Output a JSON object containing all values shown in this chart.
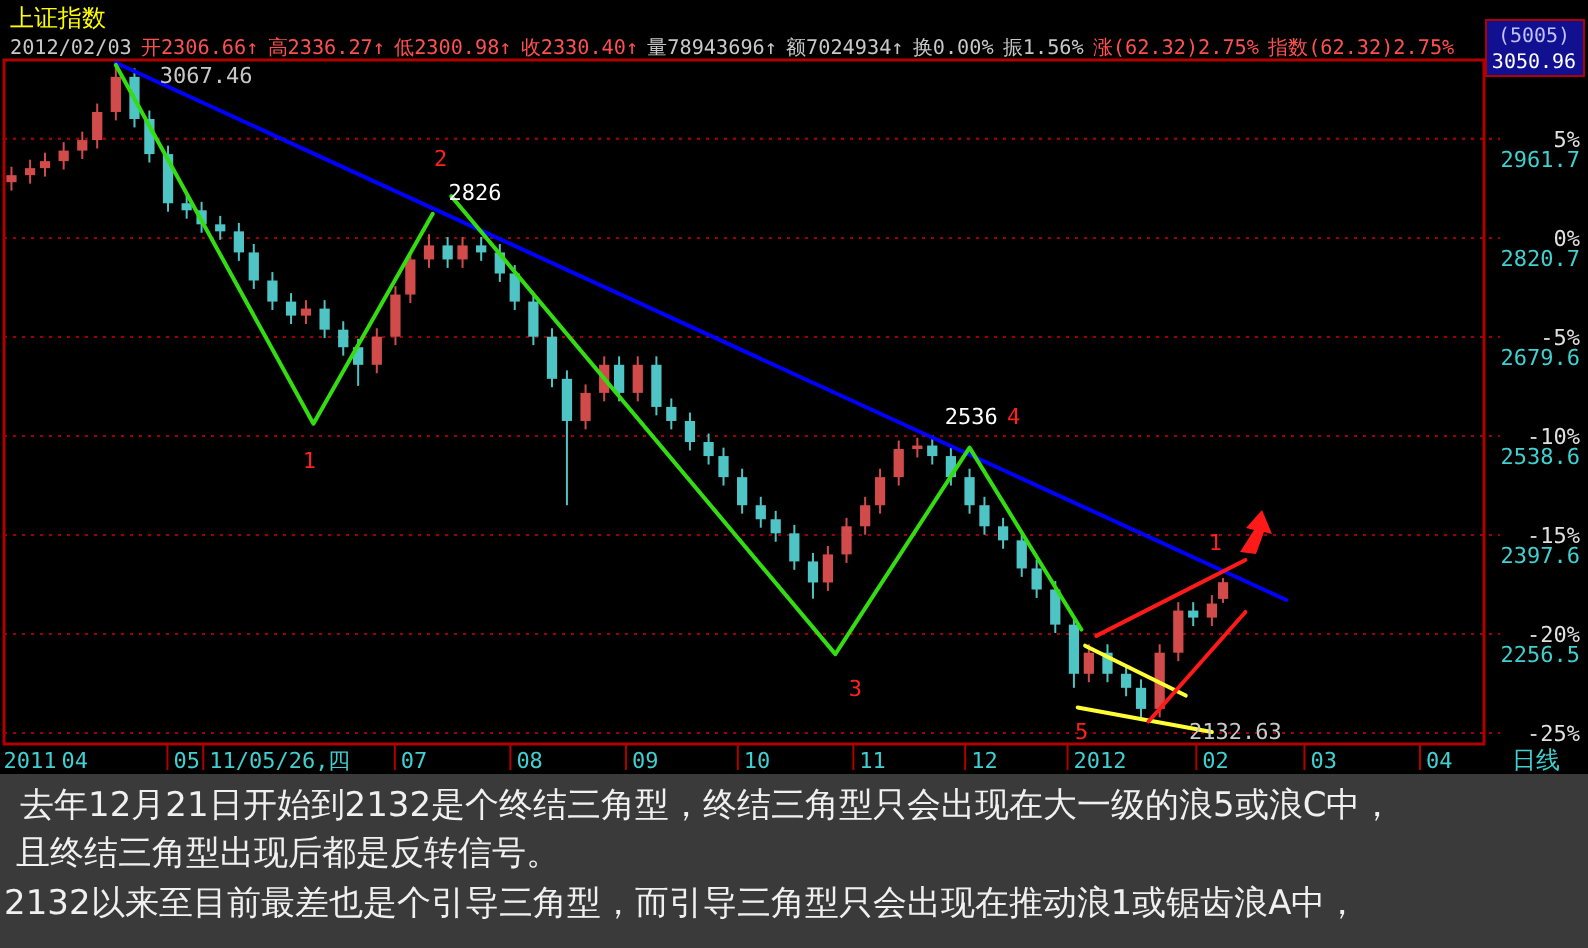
{
  "chart_data": {
    "type": "candlestick",
    "title": "上证指数",
    "xlabel": "日线",
    "x": [
      "2011-03-15",
      "2011-03-20",
      "2011-03-24",
      "2011-03-29",
      "2011-04-03",
      "2011-04-07",
      "2011-04-12",
      "2011-04-17",
      "2011-04-21",
      "2011-04-26",
      "2011-05-01",
      "2011-05-05",
      "2011-05-10",
      "2011-05-15",
      "2011-05-19",
      "2011-05-24",
      "2011-05-29",
      "2011-06-02",
      "2011-06-07",
      "2011-06-12",
      "2011-06-16",
      "2011-06-21",
      "2011-06-26",
      "2011-06-30",
      "2011-07-05",
      "2011-07-10",
      "2011-07-14",
      "2011-07-19",
      "2011-07-24",
      "2011-07-28",
      "2011-08-02",
      "2011-08-07",
      "2011-08-11",
      "2011-08-16",
      "2011-08-21",
      "2011-08-25",
      "2011-08-30",
      "2011-09-04",
      "2011-09-08",
      "2011-09-13",
      "2011-09-18",
      "2011-09-22",
      "2011-09-27",
      "2011-10-02",
      "2011-10-06",
      "2011-10-11",
      "2011-10-16",
      "2011-10-20",
      "2011-10-25",
      "2011-10-30",
      "2011-11-03",
      "2011-11-08",
      "2011-11-13",
      "2011-11-17",
      "2011-11-22",
      "2011-11-27",
      "2011-12-01",
      "2011-12-06",
      "2011-12-11",
      "2011-12-15",
      "2011-12-20",
      "2011-12-25",
      "2011-12-29",
      "2012-01-03",
      "2012-01-08",
      "2012-01-12",
      "2012-01-17",
      "2012-01-22",
      "2012-01-26",
      "2012-01-31",
      "2012-02-03"
    ],
    "ohlc": [
      [
        2900,
        2922,
        2888,
        2910
      ],
      [
        2910,
        2932,
        2898,
        2920
      ],
      [
        2920,
        2942,
        2908,
        2930
      ],
      [
        2930,
        2957,
        2918,
        2945
      ],
      [
        2945,
        2972,
        2933,
        2960
      ],
      [
        2960,
        3012,
        2948,
        3000
      ],
      [
        3000,
        3067.46,
        2988,
        3050
      ],
      [
        3050,
        3062,
        2978,
        2990
      ],
      [
        2990,
        3002,
        2928,
        2940
      ],
      [
        2940,
        2952,
        2858,
        2870
      ],
      [
        2870,
        2882,
        2848,
        2860
      ],
      [
        2860,
        2872,
        2828,
        2840
      ],
      [
        2840,
        2852,
        2818,
        2830
      ],
      [
        2830,
        2842,
        2788,
        2800
      ],
      [
        2800,
        2812,
        2748,
        2760
      ],
      [
        2760,
        2772,
        2718,
        2730
      ],
      [
        2730,
        2742,
        2698,
        2710
      ],
      [
        2710,
        2732,
        2698,
        2720
      ],
      [
        2720,
        2732,
        2678,
        2690
      ],
      [
        2690,
        2702,
        2653,
        2665
      ],
      [
        2665,
        2677,
        2610,
        2640
      ],
      [
        2640,
        2692,
        2628,
        2680
      ],
      [
        2680,
        2752,
        2668,
        2740
      ],
      [
        2740,
        2802,
        2728,
        2790
      ],
      [
        2790,
        2826,
        2778,
        2810
      ],
      [
        2810,
        2822,
        2778,
        2790
      ],
      [
        2790,
        2822,
        2778,
        2810
      ],
      [
        2810,
        2822,
        2788,
        2800
      ],
      [
        2800,
        2812,
        2758,
        2770
      ],
      [
        2770,
        2782,
        2718,
        2730
      ],
      [
        2730,
        2742,
        2668,
        2680
      ],
      [
        2680,
        2692,
        2608,
        2620
      ],
      [
        2620,
        2632,
        2440,
        2560
      ],
      [
        2560,
        2612,
        2548,
        2600
      ],
      [
        2600,
        2652,
        2588,
        2640
      ],
      [
        2640,
        2652,
        2588,
        2600
      ],
      [
        2600,
        2652,
        2588,
        2640
      ],
      [
        2640,
        2652,
        2568,
        2580
      ],
      [
        2580,
        2592,
        2548,
        2560
      ],
      [
        2560,
        2572,
        2518,
        2530
      ],
      [
        2530,
        2542,
        2498,
        2510
      ],
      [
        2510,
        2522,
        2468,
        2480
      ],
      [
        2480,
        2492,
        2428,
        2440
      ],
      [
        2440,
        2452,
        2408,
        2420
      ],
      [
        2420,
        2432,
        2388,
        2400
      ],
      [
        2400,
        2412,
        2348,
        2360
      ],
      [
        2360,
        2372,
        2307,
        2330
      ],
      [
        2330,
        2382,
        2318,
        2370
      ],
      [
        2370,
        2422,
        2358,
        2410
      ],
      [
        2410,
        2452,
        2398,
        2440
      ],
      [
        2440,
        2492,
        2428,
        2480
      ],
      [
        2480,
        2532,
        2468,
        2520
      ],
      [
        2520,
        2536,
        2508,
        2525
      ],
      [
        2525,
        2537,
        2498,
        2510
      ],
      [
        2510,
        2522,
        2468,
        2480
      ],
      [
        2480,
        2492,
        2428,
        2440
      ],
      [
        2440,
        2452,
        2398,
        2410
      ],
      [
        2410,
        2422,
        2378,
        2390
      ],
      [
        2390,
        2402,
        2338,
        2350
      ],
      [
        2350,
        2362,
        2308,
        2320
      ],
      [
        2320,
        2332,
        2258,
        2270
      ],
      [
        2270,
        2282,
        2180,
        2200
      ],
      [
        2200,
        2242,
        2188,
        2230
      ],
      [
        2230,
        2242,
        2188,
        2200
      ],
      [
        2200,
        2212,
        2168,
        2180
      ],
      [
        2180,
        2192,
        2132.63,
        2150
      ],
      [
        2150,
        2242,
        2138,
        2230
      ],
      [
        2230,
        2302,
        2218,
        2290
      ],
      [
        2290,
        2302,
        2268,
        2280
      ],
      [
        2280,
        2312,
        2268,
        2300
      ],
      [
        2306.66,
        2336.27,
        2300.98,
        2330.4
      ]
    ],
    "colors": [
      "#d24b4b",
      "#d24b4b",
      "#d24b4b",
      "#d24b4b",
      "#d24b4b",
      "#d24b4b",
      "#d24b4b",
      "#4fc4c4",
      "#4fc4c4",
      "#4fc4c4",
      "#4fc4c4",
      "#4fc4c4",
      "#4fc4c4",
      "#4fc4c4",
      "#4fc4c4",
      "#4fc4c4",
      "#4fc4c4",
      "#d24b4b",
      "#4fc4c4",
      "#4fc4c4",
      "#4fc4c4",
      "#d24b4b",
      "#d24b4b",
      "#d24b4b",
      "#d24b4b",
      "#4fc4c4",
      "#d24b4b",
      "#4fc4c4",
      "#4fc4c4",
      "#4fc4c4",
      "#4fc4c4",
      "#4fc4c4",
      "#4fc4c4",
      "#d24b4b",
      "#d24b4b",
      "#4fc4c4",
      "#d24b4b",
      "#4fc4c4",
      "#4fc4c4",
      "#4fc4c4",
      "#4fc4c4",
      "#4fc4c4",
      "#4fc4c4",
      "#4fc4c4",
      "#4fc4c4",
      "#4fc4c4",
      "#4fc4c4",
      "#d24b4b",
      "#d24b4b",
      "#d24b4b",
      "#d24b4b",
      "#d24b4b",
      "#d24b4b",
      "#4fc4c4",
      "#4fc4c4",
      "#4fc4c4",
      "#4fc4c4",
      "#4fc4c4",
      "#4fc4c4",
      "#4fc4c4",
      "#4fc4c4",
      "#4fc4c4",
      "#d24b4b",
      "#4fc4c4",
      "#4fc4c4",
      "#4fc4c4",
      "#d24b4b",
      "#d24b4b",
      "#4fc4c4",
      "#d24b4b",
      "#d24b4b"
    ],
    "series": [
      {
        "type": "line",
        "color": "#0000ff",
        "x": [
          "2011-04-12",
          "2012-02-20"
        ],
        "values": [
          3070,
          2305
        ]
      },
      {
        "type": "line",
        "color": "#33dd11",
        "x": [
          "2011-04-12",
          "2011-06-04",
          "2011-07-06"
        ],
        "values": [
          3067,
          2556,
          2855
        ]
      },
      {
        "type": "line",
        "color": "#33dd11",
        "x": [
          "2011-07-11",
          "2011-10-22",
          "2011-11-27",
          "2011-12-27"
        ],
        "values": [
          2880,
          2228,
          2522,
          2263
        ]
      },
      {
        "type": "line",
        "color": "#ffff33",
        "x": [
          "2011-12-28",
          "2012-01-24"
        ],
        "values": [
          2240,
          2169
        ]
      },
      {
        "type": "line",
        "color": "#ffff33",
        "x": [
          "2011-12-26",
          "2012-01-31"
        ],
        "values": [
          2152,
          2117
        ]
      },
      {
        "type": "line",
        "color": "#ff1a1a",
        "x": [
          "2011-12-31",
          "2012-02-09"
        ],
        "values": [
          2254,
          2362
        ]
      },
      {
        "type": "line",
        "color": "#ff1a1a",
        "x": [
          "2012-01-14",
          "2012-02-09"
        ],
        "values": [
          2132,
          2288
        ]
      }
    ],
    "xlim": [
      "2011-03-13",
      "2012-04-13"
    ],
    "xticks": [
      {
        "value": "2011-03-20",
        "label": "2011"
      },
      {
        "value": "2011-04-01",
        "label": "04"
      },
      {
        "value": "2011-05-01",
        "label": "05"
      },
      {
        "value": "2011-05-26",
        "label": "11/05/26,四"
      },
      {
        "value": "2011-07-01",
        "label": "07"
      },
      {
        "value": "2011-08-01",
        "label": "08"
      },
      {
        "value": "2011-09-01",
        "label": "09"
      },
      {
        "value": "2011-10-01",
        "label": "10"
      },
      {
        "value": "2011-11-01",
        "label": "11"
      },
      {
        "value": "2011-12-01",
        "label": "12"
      },
      {
        "value": "2012-01-01",
        "label": "2012"
      },
      {
        "value": "2012-02-01",
        "label": "02"
      },
      {
        "value": "2012-03-01",
        "label": "03"
      },
      {
        "value": "2012-04-01",
        "label": "04"
      }
    ],
    "ylim": [
      2100,
      3074
    ],
    "yticks": [
      2961.7,
      2820.7,
      2679.6,
      2538.6,
      2397.6,
      2256.5
    ],
    "y2lim": [
      -25.55,
      8.98
    ],
    "y2ticks": [
      {
        "value": 5,
        "label": "5%"
      },
      {
        "value": 0,
        "label": "0%"
      },
      {
        "value": -5,
        "label": "-5%"
      },
      {
        "value": -10,
        "label": "-10%"
      },
      {
        "value": -15,
        "label": "-15%"
      },
      {
        "value": -20,
        "label": "-20%"
      },
      {
        "value": -25,
        "label": "-25%"
      }
    ],
    "grid": "y",
    "annotations": [
      "2012/02/03",
      "开2306.66↑",
      "高2336.27↑",
      "低2300.98↑",
      "收2330.40↑",
      "量78943696↑",
      "额7024934↑",
      "换0.00%",
      "振1.56%",
      "涨(62.32)2.75%",
      "指数(62.32)2.75%",
      "(5005)",
      "3050.96",
      {
        "text": "3067.46",
        "x": "2011-04-12",
        "y": 3067.46
      },
      {
        "text": "1",
        "x": "2011-06-04",
        "y": 2556
      },
      {
        "text": "2",
        "x": "2011-07-06",
        "y": 2855
      },
      {
        "text": "2826",
        "x": "2011-07-05",
        "y": 2826
      },
      {
        "text": "3",
        "x": "2011-10-22",
        "y": 2228
      },
      {
        "text": "2536",
        "x": "2011-11-13",
        "y": 2536
      },
      {
        "text": "4",
        "x": "2011-11-27",
        "y": 2522
      },
      {
        "text": "5",
        "x": "2011-12-26",
        "y": 2152
      },
      {
        "text": "1",
        "x": "2012-02-09",
        "y": 2362
      },
      {
        "text": "2132.63",
        "x": "2012-01-12",
        "y": 2132.63
      },
      "去年12月21日开始到2132是个终结三角型，终结三角型只会出现在大一级的浪5或浪C中，",
      "且终结三角型出现后都是反转信号。",
      "2132以来至目前最差也是个引导三角型，而引导三角型只会出现在推动浪1或锯齿浪A中，"
    ]
  }
}
